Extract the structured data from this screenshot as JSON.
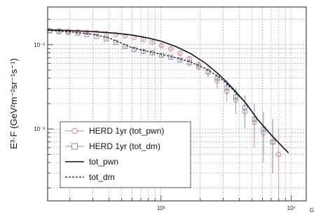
{
  "chart_data": {
    "type": "line",
    "ylabel": "E³·F (GeV²m⁻²sr⁻¹s⁻¹)",
    "xlabel_visible": "G",
    "x_scale": "log",
    "y_scale": "log",
    "xlim": [
      135,
      13000
    ],
    "ylim": [
      0.00014,
      0.028
    ],
    "grid": true,
    "legend_position": "bottom-left",
    "x_ticks": [
      {
        "value": 1000,
        "label": "10³"
      },
      {
        "value": 10000,
        "label": "10⁴"
      }
    ],
    "y_ticks": [
      {
        "value": 0.01,
        "label": "10⁻²"
      },
      {
        "value": 0.001,
        "label": "10⁻³"
      }
    ],
    "series": [
      {
        "name": "HERD 1yr (tot_pwn)",
        "style": "markers-circle",
        "color": "#d9828a",
        "x": [
          140,
          165,
          195,
          230,
          270,
          320,
          380,
          450,
          530,
          620,
          730,
          860,
          1010,
          1190,
          1400,
          1650,
          1950,
          2300,
          2700,
          3200,
          3750,
          4400,
          5200,
          6100,
          7200,
          8000
        ],
        "y": [
          0.0148,
          0.0146,
          0.0144,
          0.0142,
          0.014,
          0.0138,
          0.0135,
          0.0131,
          0.0127,
          0.0122,
          0.0115,
          0.0106,
          0.0098,
          0.0089,
          0.0079,
          0.0068,
          0.0058,
          0.0047,
          0.0037,
          0.0028,
          0.0022,
          0.0016,
          0.0012,
          0.0009,
          0.0007,
          0.0005
        ],
        "y_err_low": [
          0.0003,
          0.0003,
          0.0003,
          0.0003,
          0.0003,
          0.0003,
          0.0004,
          0.0004,
          0.0004,
          0.0004,
          0.0005,
          0.0005,
          0.0005,
          0.0006,
          0.0006,
          0.0006,
          0.0007,
          0.0007,
          0.0007,
          0.0007,
          0.0007,
          0.0006,
          0.0006,
          0.0005,
          0.0004,
          0.00035
        ],
        "y_err_high": [
          0.0003,
          0.0003,
          0.0003,
          0.0003,
          0.0003,
          0.0003,
          0.0004,
          0.0004,
          0.0004,
          0.0004,
          0.0005,
          0.0005,
          0.0005,
          0.0006,
          0.0006,
          0.0006,
          0.0007,
          0.0007,
          0.0007,
          0.0008,
          0.0008,
          0.0008,
          0.0008,
          0.0007,
          0.0006,
          0.0005
        ]
      },
      {
        "name": "HERD 1yr (tot_dm)",
        "style": "markers-square",
        "color": "#8a8fb8",
        "x": [
          140,
          165,
          195,
          230,
          270,
          320,
          380,
          450,
          530,
          620,
          730,
          860,
          1010,
          1190,
          1400,
          1650,
          1950,
          2300,
          2700,
          3200,
          3750,
          4400,
          5200,
          6100,
          7200
        ],
        "y": [
          0.0146,
          0.0143,
          0.014,
          0.0136,
          0.0131,
          0.0125,
          0.0117,
          0.0106,
          0.0095,
          0.0088,
          0.0083,
          0.008,
          0.0075,
          0.0071,
          0.0066,
          0.0061,
          0.0055,
          0.0048,
          0.004,
          0.0031,
          0.0024,
          0.0018,
          0.0013,
          0.001,
          0.0007
        ],
        "y_err_low": [
          0.0003,
          0.0003,
          0.0003,
          0.0003,
          0.0003,
          0.0003,
          0.0004,
          0.0004,
          0.0004,
          0.0004,
          0.0004,
          0.0004,
          0.0005,
          0.0005,
          0.0005,
          0.0006,
          0.0006,
          0.0006,
          0.0006,
          0.0006,
          0.0006,
          0.0006,
          0.0005,
          0.0005,
          0.0004
        ],
        "y_err_high": [
          0.0003,
          0.0003,
          0.0003,
          0.0003,
          0.0003,
          0.0003,
          0.0004,
          0.0004,
          0.0004,
          0.0004,
          0.0004,
          0.0004,
          0.0005,
          0.0005,
          0.0005,
          0.0006,
          0.0006,
          0.0006,
          0.0007,
          0.0007,
          0.0007,
          0.0007,
          0.0007,
          0.0006,
          0.0006
        ]
      },
      {
        "name": "tot_pwn",
        "style": "solid",
        "color": "#111111",
        "x": [
          135,
          200,
          300,
          450,
          600,
          800,
          1000,
          1300,
          1700,
          2200,
          2800,
          3500,
          4500,
          5500,
          7000,
          8500,
          9500
        ],
        "y": [
          0.015,
          0.0147,
          0.0143,
          0.0137,
          0.013,
          0.012,
          0.011,
          0.0095,
          0.0078,
          0.006,
          0.0044,
          0.0031,
          0.002,
          0.0013,
          0.00085,
          0.00062,
          0.00052
        ]
      },
      {
        "name": "tot_dm",
        "style": "dashed",
        "color": "#111111",
        "x": [
          135,
          200,
          300,
          400,
          500,
          600,
          800,
          1000,
          1300,
          1700,
          2200,
          2800,
          3500,
          4500,
          5500,
          7000,
          8500,
          9500
        ],
        "y": [
          0.0148,
          0.0142,
          0.0133,
          0.012,
          0.0104,
          0.0092,
          0.0083,
          0.0077,
          0.007,
          0.0062,
          0.0052,
          0.0041,
          0.003,
          0.002,
          0.0013,
          0.00085,
          0.00062,
          0.00052
        ]
      }
    ]
  }
}
